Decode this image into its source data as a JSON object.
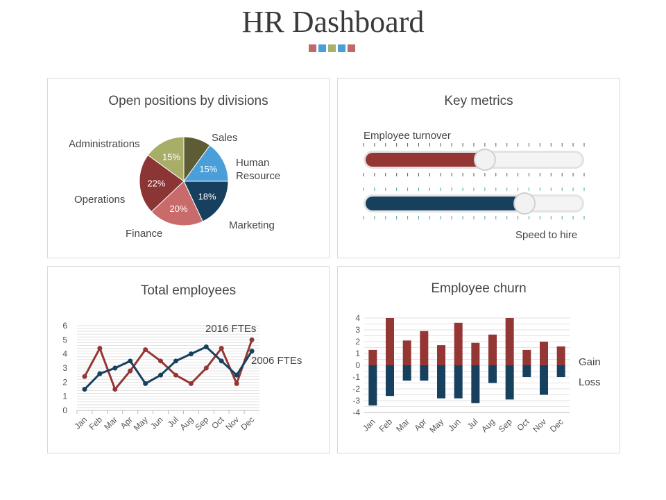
{
  "page": {
    "title": "HR Dashboard"
  },
  "decor_colors": [
    "#c0686b",
    "#4a9fd8",
    "#a9b06a",
    "#4a9fd8",
    "#c0686b"
  ],
  "panels": {
    "open_positions": {
      "title": "Open positions by divisions"
    },
    "key_metrics": {
      "title": "Key metrics"
    },
    "total_employees": {
      "title": "Total employees"
    },
    "employee_churn": {
      "title": "Employee churn"
    }
  },
  "key_metrics": {
    "employee_turnover": {
      "label": "Employee turnover",
      "value": 0.55,
      "color": "#943634"
    },
    "speed_to_hire": {
      "label": "Speed to hire",
      "value": 0.73,
      "color": "#17405f"
    }
  },
  "chart_data": [
    {
      "type": "pie",
      "title": "Open positions by divisions",
      "slices": [
        {
          "name": "Sales",
          "value": 10,
          "label": "",
          "color": "#5e5c35"
        },
        {
          "name": "Human Resource",
          "value": 15,
          "label": "15%",
          "color": "#4a9fd8"
        },
        {
          "name": "Marketing",
          "value": 18,
          "label": "18%",
          "color": "#17405f"
        },
        {
          "name": "Finance",
          "value": 20,
          "label": "20%",
          "color": "#c96a6b"
        },
        {
          "name": "Operations",
          "value": 22,
          "label": "22%",
          "color": "#8c3535"
        },
        {
          "name": "Administrations",
          "value": 15,
          "label": "15%",
          "color": "#a8ad68"
        }
      ]
    },
    {
      "type": "line",
      "title": "Total employees",
      "categories": [
        "Jan",
        "Feb",
        "Mar",
        "Apr",
        "May",
        "Jun",
        "Jul",
        "Aug",
        "Sep",
        "Oct",
        "Nov",
        "Dec"
      ],
      "ylim": [
        0,
        6
      ],
      "yticks": [
        0,
        1,
        2,
        3,
        4,
        5,
        6
      ],
      "series": [
        {
          "name": "2016 FTEs",
          "color": "#943634",
          "values": [
            2.4,
            4.4,
            1.5,
            2.8,
            4.3,
            3.5,
            2.5,
            1.9,
            3.0,
            4.4,
            1.9,
            5.0
          ]
        },
        {
          "name": "2006 FTEs",
          "color": "#17405f",
          "values": [
            1.5,
            2.6,
            3.0,
            3.5,
            1.9,
            2.5,
            3.5,
            4.0,
            4.5,
            3.5,
            2.5,
            4.2
          ]
        }
      ]
    },
    {
      "type": "bar",
      "title": "Employee churn",
      "categories": [
        "Jan",
        "Feb",
        "Mar",
        "Apr",
        "May",
        "Jun",
        "Jul",
        "Aug",
        "Sep",
        "Oct",
        "Nov",
        "Dec"
      ],
      "ylim": [
        -4,
        4
      ],
      "yticks": [
        4,
        3,
        2,
        1,
        0,
        -1,
        -2,
        -3,
        -4
      ],
      "series": [
        {
          "name": "Gain",
          "color": "#943634",
          "values": [
            1.3,
            4.0,
            2.1,
            2.9,
            1.7,
            3.6,
            1.9,
            2.6,
            4.0,
            1.3,
            2.0,
            1.6
          ]
        },
        {
          "name": "Loss",
          "color": "#17405f",
          "values": [
            -3.4,
            -2.6,
            -1.3,
            -1.3,
            -2.8,
            -2.8,
            -3.2,
            -1.5,
            -2.9,
            -1.0,
            -2.5,
            -1.0
          ]
        }
      ]
    }
  ]
}
